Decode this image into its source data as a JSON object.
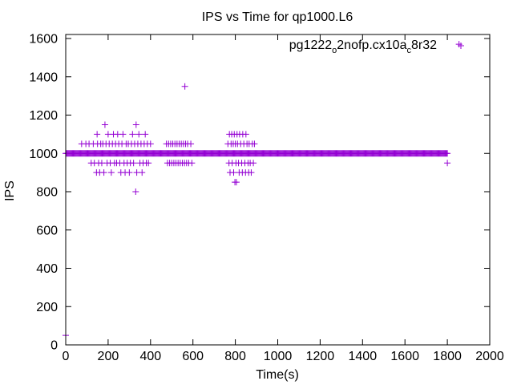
{
  "chart_data": {
    "type": "scatter",
    "title": "IPS vs Time for qp1000.L6",
    "xlabel": "Time(s)",
    "ylabel": "IPS",
    "xlim": [
      0,
      2000
    ],
    "ylim": [
      0,
      1650
    ],
    "x_ticks": [
      0,
      200,
      400,
      600,
      800,
      1000,
      1200,
      1400,
      1600,
      1800,
      2000
    ],
    "y_ticks": [
      0,
      200,
      400,
      600,
      800,
      1000,
      1200,
      1400,
      1600
    ],
    "grid": false,
    "legend_position": "top-right",
    "marker": "+",
    "series": [
      {
        "name": "pg1222_o2nofp.cx10a_c8r32",
        "legend_parts": [
          {
            "text": "pg1222",
            "sub": false
          },
          {
            "text": "o",
            "sub": true
          },
          {
            "text": "2nofp.cx10a",
            "sub": false
          },
          {
            "text": "c",
            "sub": true
          },
          {
            "text": "8r32",
            "sub": false
          }
        ],
        "color": "#9400d3",
        "dense_band": {
          "y": 1000,
          "x_start": 0,
          "x_end": 1800,
          "step": 4
        },
        "points": [
          [
            0,
            50
          ],
          [
            75,
            1050
          ],
          [
            95,
            1050
          ],
          [
            110,
            1050
          ],
          [
            120,
            950
          ],
          [
            130,
            1050
          ],
          [
            135,
            950
          ],
          [
            145,
            900
          ],
          [
            148,
            1100
          ],
          [
            150,
            1050
          ],
          [
            155,
            950
          ],
          [
            160,
            900
          ],
          [
            165,
            1050
          ],
          [
            170,
            950
          ],
          [
            175,
            1050
          ],
          [
            180,
            900
          ],
          [
            185,
            1150
          ],
          [
            190,
            1050
          ],
          [
            195,
            950
          ],
          [
            200,
            1100
          ],
          [
            205,
            1050
          ],
          [
            210,
            950
          ],
          [
            215,
            900
          ],
          [
            220,
            1050
          ],
          [
            225,
            1100
          ],
          [
            230,
            950
          ],
          [
            235,
            1050
          ],
          [
            240,
            950
          ],
          [
            245,
            1100
          ],
          [
            250,
            1050
          ],
          [
            255,
            950
          ],
          [
            260,
            900
          ],
          [
            265,
            1050
          ],
          [
            270,
            1100
          ],
          [
            275,
            950
          ],
          [
            280,
            900
          ],
          [
            285,
            1050
          ],
          [
            290,
            950
          ],
          [
            295,
            1050
          ],
          [
            300,
            900
          ],
          [
            305,
            950
          ],
          [
            310,
            1050
          ],
          [
            315,
            1100
          ],
          [
            320,
            950
          ],
          [
            325,
            1050
          ],
          [
            330,
            800
          ],
          [
            332,
            1150
          ],
          [
            335,
            900
          ],
          [
            340,
            1050
          ],
          [
            345,
            1100
          ],
          [
            350,
            950
          ],
          [
            355,
            1050
          ],
          [
            360,
            900
          ],
          [
            365,
            950
          ],
          [
            370,
            1050
          ],
          [
            375,
            1100
          ],
          [
            380,
            950
          ],
          [
            385,
            1050
          ],
          [
            390,
            950
          ],
          [
            400,
            1050
          ],
          [
            475,
            1050
          ],
          [
            480,
            950
          ],
          [
            485,
            1050
          ],
          [
            490,
            950
          ],
          [
            495,
            1050
          ],
          [
            500,
            950
          ],
          [
            505,
            1050
          ],
          [
            510,
            950
          ],
          [
            515,
            1050
          ],
          [
            520,
            950
          ],
          [
            525,
            1050
          ],
          [
            530,
            950
          ],
          [
            535,
            1050
          ],
          [
            540,
            950
          ],
          [
            545,
            1050
          ],
          [
            550,
            950
          ],
          [
            555,
            1050
          ],
          [
            560,
            950
          ],
          [
            562,
            1350
          ],
          [
            565,
            1050
          ],
          [
            570,
            950
          ],
          [
            575,
            1050
          ],
          [
            580,
            950
          ],
          [
            590,
            1050
          ],
          [
            595,
            950
          ],
          [
            765,
            1050
          ],
          [
            770,
            950
          ],
          [
            772,
            1100
          ],
          [
            775,
            900
          ],
          [
            780,
            1050
          ],
          [
            783,
            1100
          ],
          [
            785,
            950
          ],
          [
            790,
            1050
          ],
          [
            792,
            900
          ],
          [
            795,
            1100
          ],
          [
            798,
            850
          ],
          [
            800,
            1050
          ],
          [
            803,
            950
          ],
          [
            805,
            850
          ],
          [
            808,
            1100
          ],
          [
            810,
            1050
          ],
          [
            815,
            950
          ],
          [
            818,
            900
          ],
          [
            820,
            1100
          ],
          [
            825,
            1050
          ],
          [
            830,
            950
          ],
          [
            833,
            900
          ],
          [
            835,
            1100
          ],
          [
            840,
            1050
          ],
          [
            845,
            950
          ],
          [
            848,
            900
          ],
          [
            850,
            1100
          ],
          [
            855,
            1050
          ],
          [
            860,
            950
          ],
          [
            863,
            900
          ],
          [
            865,
            1050
          ],
          [
            870,
            950
          ],
          [
            875,
            900
          ],
          [
            880,
            1050
          ],
          [
            885,
            950
          ],
          [
            890,
            1050
          ],
          [
            1800,
            950
          ],
          [
            1855,
            1570
          ]
        ]
      }
    ]
  }
}
